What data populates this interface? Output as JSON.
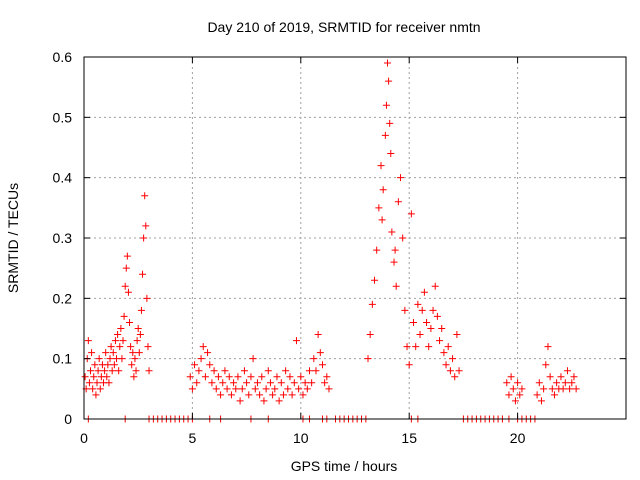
{
  "chart_data": {
    "type": "scatter",
    "title": "Day 210 of 2019, SRMTID for receiver nmtn",
    "xlabel": "GPS time / hours",
    "ylabel": "SRMTID / TECUs",
    "xlim": [
      0,
      25
    ],
    "ylim": [
      0,
      0.6
    ],
    "xticks": [
      "0",
      "5",
      "10",
      "15",
      "20"
    ],
    "xtick_values": [
      0,
      5,
      10,
      15,
      20
    ],
    "yticks": [
      "0",
      "0.1",
      "0.2",
      "0.3",
      "0.4",
      "0.5",
      "0.6"
    ],
    "ytick_values": [
      0,
      0.1,
      0.2,
      0.3,
      0.4,
      0.5,
      0.6
    ],
    "grid": true,
    "marker": "+",
    "marker_color": "#ff0000",
    "series": [
      {
        "name": "srmtid",
        "points": [
          [
            0.05,
            0.07
          ],
          [
            0.1,
            0.05
          ],
          [
            0.15,
            0.1
          ],
          [
            0.2,
            0.13
          ],
          [
            0.25,
            0.06
          ],
          [
            0.3,
            0.08
          ],
          [
            0.35,
            0.11
          ],
          [
            0.4,
            0.05
          ],
          [
            0.45,
            0.07
          ],
          [
            0.5,
            0.09
          ],
          [
            0.55,
            0.04
          ],
          [
            0.6,
            0.06
          ],
          [
            0.65,
            0.08
          ],
          [
            0.7,
            0.1
          ],
          [
            0.75,
            0.05
          ],
          [
            0.8,
            0.07
          ],
          [
            0.85,
            0.09
          ],
          [
            0.9,
            0.06
          ],
          [
            0.95,
            0.08
          ],
          [
            1.0,
            0.11
          ],
          [
            1.05,
            0.07
          ],
          [
            1.1,
            0.09
          ],
          [
            1.15,
            0.06
          ],
          [
            1.2,
            0.1
          ],
          [
            1.25,
            0.12
          ],
          [
            1.3,
            0.08
          ],
          [
            1.35,
            0.11
          ],
          [
            1.4,
            0.09
          ],
          [
            1.45,
            0.13
          ],
          [
            1.5,
            0.1
          ],
          [
            1.55,
            0.14
          ],
          [
            1.6,
            0.08
          ],
          [
            1.65,
            0.12
          ],
          [
            1.7,
            0.15
          ],
          [
            1.75,
            0.1
          ],
          [
            1.8,
            0.13
          ],
          [
            1.85,
            0.17
          ],
          [
            1.9,
            0.22
          ],
          [
            1.95,
            0.25
          ],
          [
            2.0,
            0.27
          ],
          [
            2.05,
            0.21
          ],
          [
            2.1,
            0.16
          ],
          [
            2.15,
            0.12
          ],
          [
            2.2,
            0.09
          ],
          [
            2.25,
            0.11
          ],
          [
            2.3,
            0.07
          ],
          [
            2.35,
            0.1
          ],
          [
            2.4,
            0.08
          ],
          [
            2.45,
            0.13
          ],
          [
            2.5,
            0.15
          ],
          [
            2.55,
            0.11
          ],
          [
            2.6,
            0.14
          ],
          [
            2.65,
            0.18
          ],
          [
            2.7,
            0.24
          ],
          [
            2.75,
            0.3
          ],
          [
            2.8,
            0.37
          ],
          [
            2.85,
            0.32
          ],
          [
            2.9,
            0.2
          ],
          [
            2.95,
            0.12
          ],
          [
            3.0,
            0.08
          ],
          [
            4.9,
            0.07
          ],
          [
            5.0,
            0.05
          ],
          [
            5.1,
            0.09
          ],
          [
            5.2,
            0.06
          ],
          [
            5.3,
            0.08
          ],
          [
            5.4,
            0.1
          ],
          [
            5.5,
            0.12
          ],
          [
            5.6,
            0.07
          ],
          [
            5.7,
            0.11
          ],
          [
            5.8,
            0.09
          ],
          [
            5.9,
            0.06
          ],
          [
            6.0,
            0.08
          ],
          [
            6.1,
            0.05
          ],
          [
            6.2,
            0.07
          ],
          [
            6.3,
            0.04
          ],
          [
            6.4,
            0.06
          ],
          [
            6.5,
            0.08
          ],
          [
            6.6,
            0.05
          ],
          [
            6.7,
            0.07
          ],
          [
            6.8,
            0.04
          ],
          [
            6.9,
            0.06
          ],
          [
            7.0,
            0.05
          ],
          [
            7.1,
            0.07
          ],
          [
            7.2,
            0.03
          ],
          [
            7.3,
            0.05
          ],
          [
            7.4,
            0.08
          ],
          [
            7.5,
            0.06
          ],
          [
            7.6,
            0.04
          ],
          [
            7.7,
            0.07
          ],
          [
            7.8,
            0.1
          ],
          [
            7.9,
            0.05
          ],
          [
            8.0,
            0.06
          ],
          [
            8.1,
            0.04
          ],
          [
            8.2,
            0.07
          ],
          [
            8.3,
            0.03
          ],
          [
            8.4,
            0.05
          ],
          [
            8.5,
            0.08
          ],
          [
            8.6,
            0.06
          ],
          [
            8.7,
            0.04
          ],
          [
            8.8,
            0.05
          ],
          [
            8.9,
            0.07
          ],
          [
            9.0,
            0.03
          ],
          [
            9.1,
            0.06
          ],
          [
            9.2,
            0.04
          ],
          [
            9.3,
            0.08
          ],
          [
            9.4,
            0.05
          ],
          [
            9.5,
            0.07
          ],
          [
            9.6,
            0.04
          ],
          [
            9.7,
            0.06
          ],
          [
            9.8,
            0.13
          ],
          [
            9.9,
            0.05
          ],
          [
            10.0,
            0.07
          ],
          [
            10.1,
            0.04
          ],
          [
            10.2,
            0.06
          ],
          [
            10.3,
            0.05
          ],
          [
            10.4,
            0.08
          ],
          [
            10.5,
            0.06
          ],
          [
            10.6,
            0.1
          ],
          [
            10.7,
            0.08
          ],
          [
            10.8,
            0.14
          ],
          [
            10.9,
            0.11
          ],
          [
            11.0,
            0.09
          ],
          [
            11.1,
            0.06
          ],
          [
            11.2,
            0.07
          ],
          [
            11.3,
            0.05
          ],
          [
            13.1,
            0.1
          ],
          [
            13.2,
            0.14
          ],
          [
            13.3,
            0.19
          ],
          [
            13.4,
            0.23
          ],
          [
            13.5,
            0.28
          ],
          [
            13.6,
            0.35
          ],
          [
            13.7,
            0.42
          ],
          [
            13.8,
            0.38
          ],
          [
            13.9,
            0.47
          ],
          [
            14.0,
            0.59
          ],
          [
            14.05,
            0.56
          ],
          [
            14.1,
            0.49
          ],
          [
            14.2,
            0.31
          ],
          [
            14.3,
            0.26
          ],
          [
            14.4,
            0.22
          ],
          [
            14.5,
            0.36
          ],
          [
            14.6,
            0.4
          ],
          [
            14.7,
            0.3
          ],
          [
            14.8,
            0.18
          ],
          [
            14.9,
            0.12
          ],
          [
            15.0,
            0.09
          ],
          [
            15.1,
            0.34
          ],
          [
            15.2,
            0.16
          ],
          [
            15.3,
            0.12
          ],
          [
            15.4,
            0.19
          ],
          [
            15.5,
            0.14
          ],
          [
            15.6,
            0.18
          ],
          [
            15.7,
            0.21
          ],
          [
            15.8,
            0.16
          ],
          [
            15.9,
            0.12
          ],
          [
            16.0,
            0.15
          ],
          [
            16.1,
            0.18
          ],
          [
            16.2,
            0.22
          ],
          [
            16.3,
            0.17
          ],
          [
            16.4,
            0.13
          ],
          [
            16.5,
            0.15
          ],
          [
            16.6,
            0.11
          ],
          [
            16.7,
            0.09
          ],
          [
            16.8,
            0.12
          ],
          [
            16.9,
            0.08
          ],
          [
            17.0,
            0.1
          ],
          [
            17.1,
            0.07
          ],
          [
            17.2,
            0.14
          ],
          [
            17.3,
            0.08
          ],
          [
            19.5,
            0.06
          ],
          [
            19.6,
            0.04
          ],
          [
            19.7,
            0.07
          ],
          [
            19.8,
            0.05
          ],
          [
            19.9,
            0.03
          ],
          [
            20.0,
            0.06
          ],
          [
            20.1,
            0.04
          ],
          [
            20.2,
            0.05
          ],
          [
            20.9,
            0.04
          ],
          [
            21.0,
            0.06
          ],
          [
            21.1,
            0.03
          ],
          [
            21.2,
            0.05
          ],
          [
            21.3,
            0.09
          ],
          [
            21.4,
            0.12
          ],
          [
            21.5,
            0.07
          ],
          [
            21.6,
            0.05
          ],
          [
            21.7,
            0.04
          ],
          [
            21.8,
            0.06
          ],
          [
            21.9,
            0.05
          ],
          [
            22.0,
            0.07
          ],
          [
            22.1,
            0.05
          ],
          [
            22.2,
            0.06
          ],
          [
            22.3,
            0.08
          ],
          [
            22.4,
            0.05
          ],
          [
            22.5,
            0.06
          ],
          [
            22.6,
            0.07
          ],
          [
            22.7,
            0.05
          ],
          [
            13.95,
            0.52
          ],
          [
            14.15,
            0.44
          ],
          [
            13.75,
            0.33
          ],
          [
            14.35,
            0.28
          ]
        ]
      },
      {
        "name": "zero-level",
        "points": [
          [
            0.2,
            0
          ],
          [
            1.9,
            0
          ],
          [
            3.0,
            0
          ],
          [
            3.2,
            0
          ],
          [
            3.4,
            0
          ],
          [
            3.6,
            0
          ],
          [
            3.8,
            0
          ],
          [
            4.0,
            0
          ],
          [
            4.2,
            0
          ],
          [
            4.4,
            0
          ],
          [
            4.6,
            0
          ],
          [
            4.8,
            0
          ],
          [
            5.0,
            0
          ],
          [
            5.8,
            0
          ],
          [
            6.3,
            0
          ],
          [
            7.7,
            0
          ],
          [
            8.5,
            0
          ],
          [
            10.1,
            0
          ],
          [
            10.4,
            0
          ],
          [
            11.0,
            0
          ],
          [
            11.2,
            0
          ],
          [
            11.6,
            0
          ],
          [
            11.8,
            0
          ],
          [
            12.0,
            0
          ],
          [
            12.2,
            0
          ],
          [
            12.4,
            0
          ],
          [
            12.6,
            0
          ],
          [
            12.8,
            0
          ],
          [
            13.0,
            0
          ],
          [
            15.1,
            0
          ],
          [
            15.4,
            0
          ],
          [
            17.5,
            0
          ],
          [
            17.7,
            0
          ],
          [
            17.9,
            0
          ],
          [
            18.1,
            0
          ],
          [
            18.3,
            0
          ],
          [
            18.5,
            0
          ],
          [
            18.7,
            0
          ],
          [
            18.9,
            0
          ],
          [
            19.1,
            0
          ],
          [
            19.3,
            0
          ],
          [
            19.6,
            0
          ],
          [
            20.0,
            0
          ],
          [
            20.2,
            0
          ],
          [
            20.4,
            0
          ],
          [
            20.6,
            0
          ],
          [
            20.8,
            0
          ]
        ]
      }
    ]
  }
}
